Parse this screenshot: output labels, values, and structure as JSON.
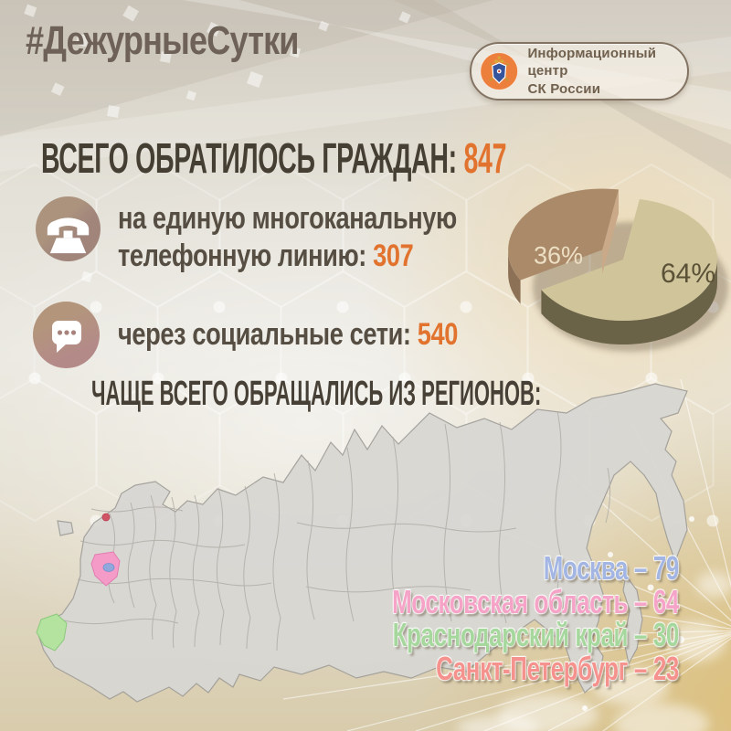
{
  "header": {
    "hashtag": "#ДежурныеСутки",
    "badge": {
      "line1": "Информационный центр",
      "line2": "СК России"
    }
  },
  "stats": {
    "total_label": "ВСЕГО ОБРАТИЛОСЬ ГРАЖДАН:",
    "total_value": "847",
    "phone_line1": "на единую многоканальную",
    "phone_line2": "телефонную линию:",
    "phone_value": "307",
    "social_label": "через социальные сети:",
    "social_value": "540"
  },
  "chart_data": [
    {
      "type": "pie",
      "labels": [
        "64%",
        "36%"
      ],
      "values": [
        64,
        36
      ],
      "colors": [
        "#cfc49a",
        "#ab8a6a"
      ],
      "legend_position": "none"
    },
    {
      "type": "table",
      "title": "ЧАЩЕ ВСЕГО ОБРАЩАЛИСЬ ИЗ РЕГИОНОВ:",
      "categories": [
        "Москва",
        "Московская область",
        "Краснодарский край",
        "Санкт-Петербург"
      ],
      "values": [
        79,
        64,
        30,
        23
      ],
      "colors": [
        "#a3b6e3",
        "#f5a3c7",
        "#a6d89e",
        "#f5928d"
      ]
    }
  ],
  "colors": {
    "accent_orange": "#e1732f",
    "heading_dark": "#453e33",
    "hashtag_brown": "#6e6157",
    "pie_label_dark": "#5a5136",
    "pie_label_light": "#ecdfc4"
  }
}
